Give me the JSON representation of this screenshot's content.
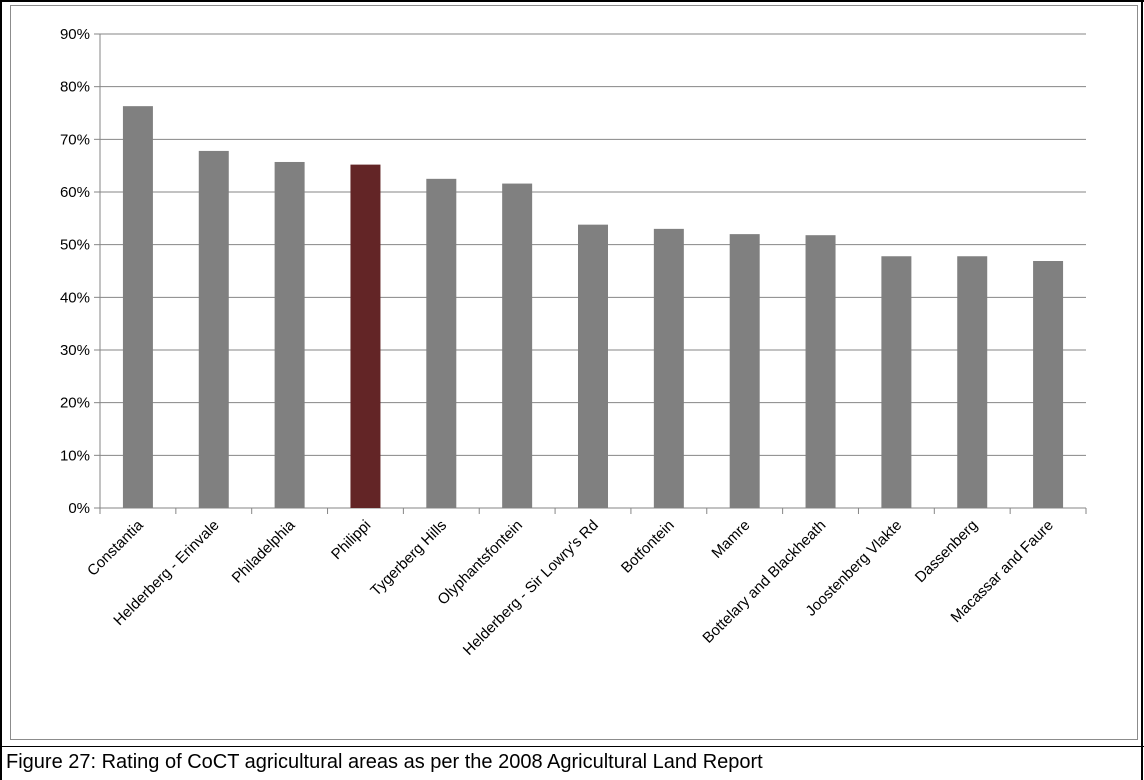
{
  "caption": "Figure 27: Rating of CoCT agricultural areas as per the 2008 Agricultural Land Report",
  "chart_data": {
    "type": "bar",
    "categories": [
      "Constantia",
      "Helderberg - Erinvale",
      "Philadelphia",
      "Philippi",
      "Tygerberg Hills",
      "Olyphantsfontein",
      "Helderberg - Sir Lowry's  Rd",
      "Botfontein",
      "Mamre",
      "Bottelary and Blackheath",
      "Joostenberg Vlakte",
      "Dassenberg",
      "Macassar and Faure"
    ],
    "values": [
      76.3,
      67.8,
      65.7,
      65.2,
      62.5,
      61.6,
      53.8,
      53.0,
      52.0,
      51.8,
      47.8,
      47.8,
      46.9
    ],
    "ylim": [
      0,
      90
    ],
    "yticks": [
      "0%",
      "10%",
      "20%",
      "30%",
      "40%",
      "50%",
      "60%",
      "70%",
      "80%",
      "90%"
    ],
    "grid": true,
    "colors": {
      "default": "#808080",
      "highlight": "#632526"
    },
    "highlight_index": 3
  }
}
